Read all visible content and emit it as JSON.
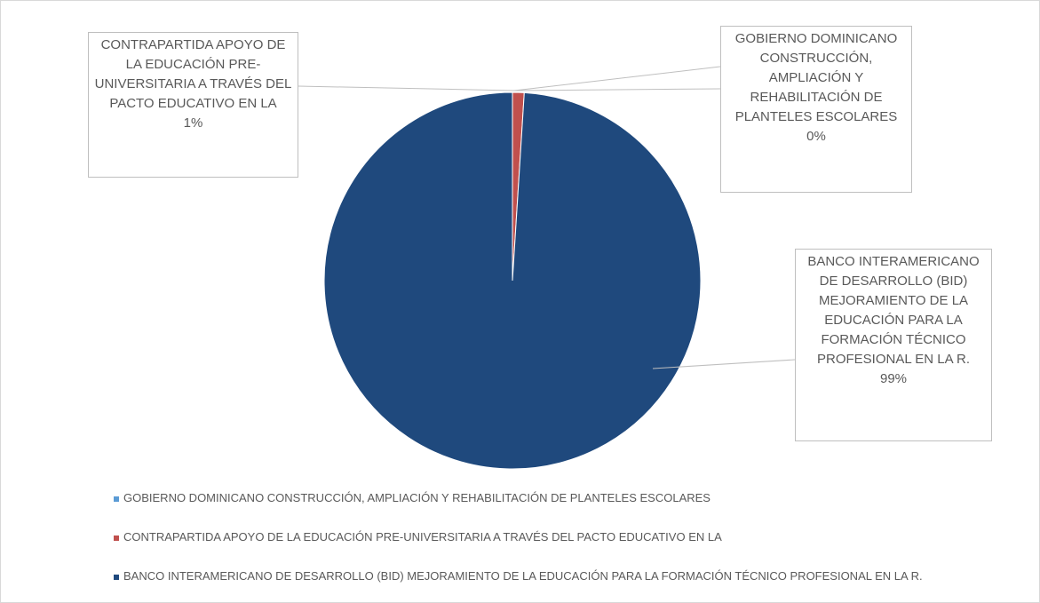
{
  "chart_data": {
    "type": "pie",
    "categories": [
      "GOBIERNO DOMINICANO CONSTRUCCIÓN, AMPLIACIÓN Y REHABILITACIÓN DE PLANTELES ESCOLARES",
      "CONTRAPARTIDA APOYO DE LA EDUCACIÓN PRE-UNIVERSITARIA A TRAVÉS DEL PACTO EDUCATIVO EN LA",
      "BANCO INTERAMERICANO DE DESARROLLO (BID) MEJORAMIENTO DE LA EDUCACIÓN PARA LA FORMACIÓN TÉCNICO PROFESIONAL EN LA R."
    ],
    "values": [
      0,
      1,
      99
    ],
    "value_labels": [
      "0%",
      "1%",
      "99%"
    ],
    "colors": [
      "#5b9bd5",
      "#c0504d",
      "#1f497d"
    ],
    "legend": "bottom"
  }
}
